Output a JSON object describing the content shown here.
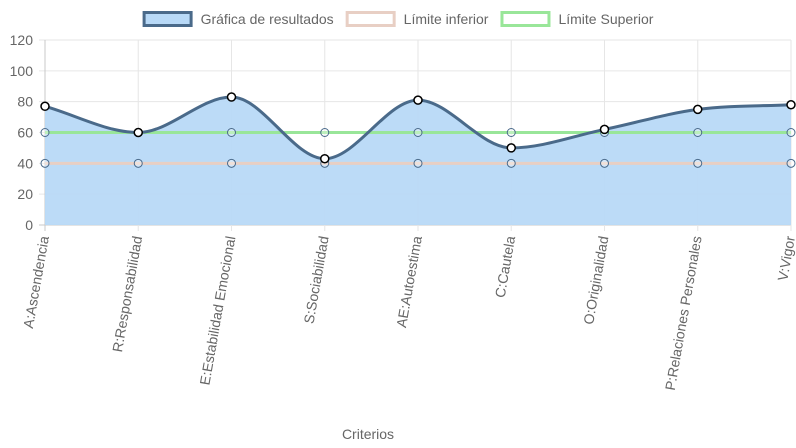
{
  "chart_data": {
    "type": "line",
    "categories": [
      "A:Ascendencia",
      "R:Responsabilidad",
      "E:Estabilidad Emocional",
      "S:Sociabilidad",
      "AE:Autoestima",
      "C:Cautela",
      "O:Originalidad",
      "P:Relaciones Personales",
      "V:Vigor"
    ],
    "series": [
      {
        "name": "Gráfica de resultados",
        "values": [
          77,
          60,
          83,
          43,
          81,
          50,
          62,
          75,
          78
        ],
        "color": "#4a6a8a",
        "fill": "#b8d9f7",
        "curve": "smooth"
      },
      {
        "name": "Límite inferior",
        "values": [
          40,
          40,
          40,
          40,
          40,
          40,
          40,
          40,
          40
        ],
        "color": "#e8cfc4",
        "fill": "none",
        "curve": "straight"
      },
      {
        "name": "Límite Superior",
        "values": [
          60,
          60,
          60,
          60,
          60,
          60,
          60,
          60,
          60
        ],
        "color": "#99e699",
        "fill": "none",
        "curve": "straight"
      }
    ],
    "xlabel": "Criterios",
    "ylabel": "",
    "ylim": [
      0,
      120
    ],
    "yticks": [
      0,
      20,
      40,
      60,
      80,
      100,
      120
    ],
    "grid": true,
    "legend_position": "top-center"
  }
}
